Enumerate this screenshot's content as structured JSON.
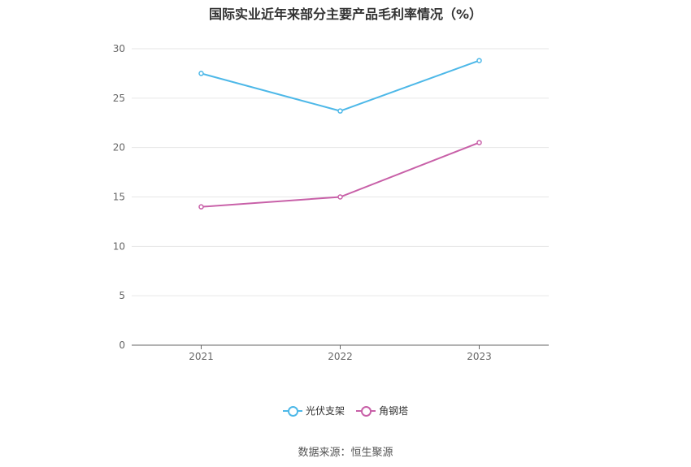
{
  "title": "国际实业近年来部分主要产品毛利率情况（%）",
  "source": "数据来源：恒生聚源",
  "chart_data": {
    "type": "line",
    "title": "国际实业近年来部分主要产品毛利率情况（%）",
    "categories": [
      "2021",
      "2022",
      "2023"
    ],
    "ylim": [
      0,
      30
    ],
    "yticks": [
      "0",
      "5",
      "10",
      "15",
      "20",
      "25",
      "30"
    ],
    "grid": true,
    "legend_position": "bottom",
    "series": [
      {
        "name": "光伏支架",
        "color": "#4db8e8",
        "values": [
          27.5,
          23.7,
          28.8
        ]
      },
      {
        "name": "角钢塔",
        "color": "#c860a8",
        "values": [
          14.0,
          15.0,
          20.5
        ]
      }
    ]
  }
}
